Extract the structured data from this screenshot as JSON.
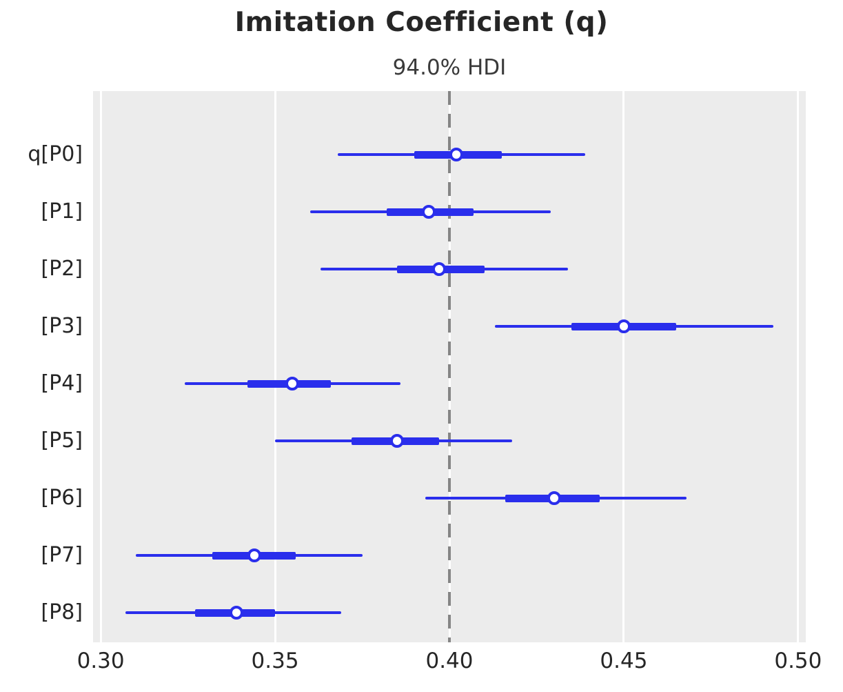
{
  "title": "Imitation Coefficient (q)",
  "subtitle": "94.0% HDI",
  "colors": {
    "interval": "#2a2eec",
    "panel_background": "#ececec",
    "gridline": "#ffffff",
    "reference_line": "#858585",
    "text": "#262626"
  },
  "chart_data": {
    "type": "forest",
    "title": "Imitation Coefficient (q)",
    "subtitle": "94.0% HDI",
    "hdi_probability": 94.0,
    "xlim": [
      0.2978,
      0.5022
    ],
    "xticks": [
      {
        "value": 0.3,
        "label": "0.30"
      },
      {
        "value": 0.35,
        "label": "0.35"
      },
      {
        "value": 0.4,
        "label": "0.40"
      },
      {
        "value": 0.45,
        "label": "0.45"
      },
      {
        "value": 0.5,
        "label": "0.50"
      }
    ],
    "reference_line": 0.4,
    "grid": true,
    "rows": [
      {
        "label": "q[P0]",
        "hdi_low": 0.368,
        "hdi_high": 0.439,
        "quartile_low": 0.39,
        "quartile_high": 0.415,
        "point": 0.402
      },
      {
        "label": "[P1]",
        "hdi_low": 0.36,
        "hdi_high": 0.429,
        "quartile_low": 0.382,
        "quartile_high": 0.407,
        "point": 0.394
      },
      {
        "label": "[P2]",
        "hdi_low": 0.363,
        "hdi_high": 0.434,
        "quartile_low": 0.385,
        "quartile_high": 0.41,
        "point": 0.397
      },
      {
        "label": "[P3]",
        "hdi_low": 0.413,
        "hdi_high": 0.493,
        "quartile_low": 0.435,
        "quartile_high": 0.465,
        "point": 0.45
      },
      {
        "label": "[P4]",
        "hdi_low": 0.324,
        "hdi_high": 0.386,
        "quartile_low": 0.342,
        "quartile_high": 0.366,
        "point": 0.355
      },
      {
        "label": "[P5]",
        "hdi_low": 0.35,
        "hdi_high": 0.418,
        "quartile_low": 0.372,
        "quartile_high": 0.397,
        "point": 0.385
      },
      {
        "label": "[P6]",
        "hdi_low": 0.393,
        "hdi_high": 0.468,
        "quartile_low": 0.416,
        "quartile_high": 0.443,
        "point": 0.43
      },
      {
        "label": "[P7]",
        "hdi_low": 0.31,
        "hdi_high": 0.375,
        "quartile_low": 0.332,
        "quartile_high": 0.356,
        "point": 0.344
      },
      {
        "label": "[P8]",
        "hdi_low": 0.307,
        "hdi_high": 0.369,
        "quartile_low": 0.327,
        "quartile_high": 0.35,
        "point": 0.339
      }
    ]
  }
}
